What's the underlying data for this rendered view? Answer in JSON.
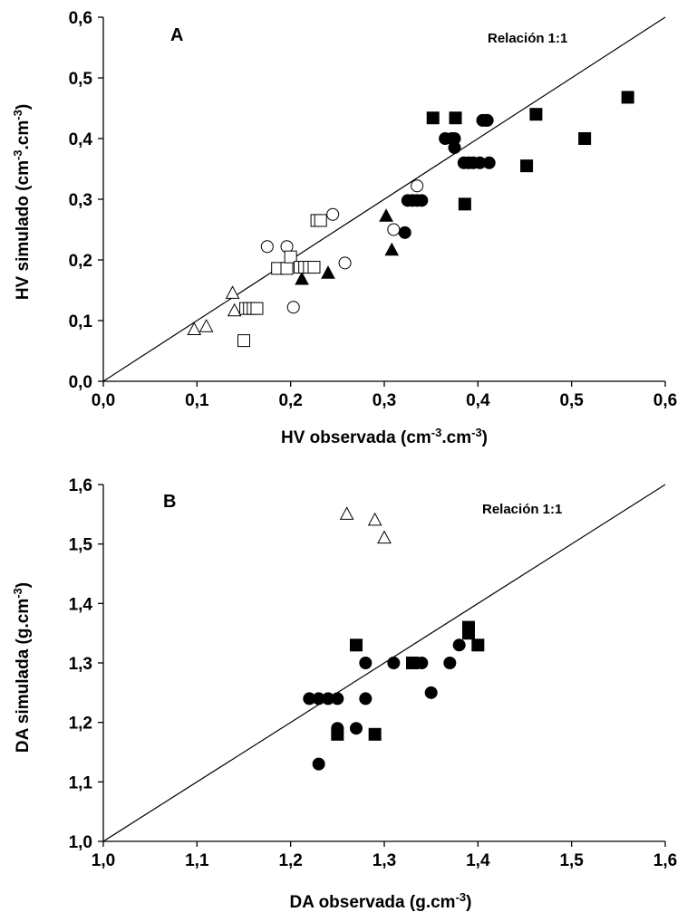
{
  "chart_data": [
    {
      "type": "scatter",
      "panel_label": "A",
      "annotation": "Relación 1:1",
      "xlabel": "HV observada (cm-3.cm-3)",
      "xlabel_parts": [
        "HV observada (cm",
        "-3",
        ".cm",
        "-3",
        ")"
      ],
      "ylabel": "HV simulado (cm-3.cm-3)",
      "ylabel_parts": [
        "HV simulado (cm",
        "-3",
        ".cm",
        "-3",
        ")"
      ],
      "xlim": [
        0.0,
        0.6
      ],
      "ylim": [
        0.0,
        0.6
      ],
      "xticks": [
        0.0,
        0.1,
        0.2,
        0.3,
        0.4,
        0.5,
        0.6
      ],
      "yticks": [
        0.0,
        0.1,
        0.2,
        0.3,
        0.4,
        0.5,
        0.6
      ],
      "xtick_labels": [
        "0,0",
        "0,1",
        "0,2",
        "0,3",
        "0,4",
        "0,5",
        "0,6"
      ],
      "ytick_labels": [
        "0,0",
        "0,1",
        "0,2",
        "0,3",
        "0,4",
        "0,5",
        "0,6"
      ],
      "grid": false,
      "reference_line": {
        "type": "1:1",
        "from": [
          0.0,
          0.0
        ],
        "to": [
          0.6,
          0.6
        ]
      },
      "series": [
        {
          "marker": "square-filled",
          "x": [
            0.352,
            0.376,
            0.386,
            0.452,
            0.462,
            0.514,
            0.56
          ],
          "y": [
            0.434,
            0.434,
            0.292,
            0.355,
            0.44,
            0.4,
            0.468
          ]
        },
        {
          "marker": "circle-filled",
          "x": [
            0.322,
            0.325,
            0.33,
            0.335,
            0.34,
            0.365,
            0.372,
            0.375,
            0.375,
            0.385,
            0.39,
            0.395,
            0.402,
            0.405,
            0.408,
            0.41,
            0.412
          ],
          "y": [
            0.245,
            0.298,
            0.298,
            0.298,
            0.298,
            0.4,
            0.4,
            0.4,
            0.385,
            0.36,
            0.36,
            0.36,
            0.36,
            0.43,
            0.43,
            0.43,
            0.36
          ]
        },
        {
          "marker": "triangle-filled",
          "x": [
            0.212,
            0.24,
            0.302,
            0.308
          ],
          "y": [
            0.168,
            0.178,
            0.272,
            0.216
          ]
        },
        {
          "marker": "triangle-open",
          "x": [
            0.097,
            0.11,
            0.138,
            0.14
          ],
          "y": [
            0.085,
            0.09,
            0.145,
            0.116
          ]
        },
        {
          "marker": "circle-open",
          "x": [
            0.175,
            0.196,
            0.203,
            0.245,
            0.258,
            0.31,
            0.335
          ],
          "y": [
            0.222,
            0.222,
            0.122,
            0.275,
            0.195,
            0.25,
            0.322
          ]
        },
        {
          "marker": "square-open",
          "x": [
            0.15,
            0.152,
            0.156,
            0.16,
            0.164,
            0.186,
            0.196,
            0.2,
            0.21,
            0.215,
            0.22,
            0.225,
            0.228,
            0.232
          ],
          "y": [
            0.067,
            0.12,
            0.12,
            0.12,
            0.12,
            0.186,
            0.186,
            0.205,
            0.188,
            0.188,
            0.188,
            0.188,
            0.265,
            0.265
          ]
        }
      ]
    },
    {
      "type": "scatter",
      "panel_label": "B",
      "annotation": "Relación 1:1",
      "xlabel": "DA observada (g.cm-3)",
      "xlabel_parts": [
        "DA observada (g.cm",
        "-3",
        ")",
        "",
        ""
      ],
      "ylabel": "DA simulada (g.cm-3)",
      "ylabel_parts": [
        "DA simulada (g.cm",
        "-3",
        ")",
        "",
        ""
      ],
      "xlim": [
        1.0,
        1.6
      ],
      "ylim": [
        1.0,
        1.6
      ],
      "xticks": [
        1.0,
        1.1,
        1.2,
        1.3,
        1.4,
        1.5,
        1.6
      ],
      "yticks": [
        1.0,
        1.1,
        1.2,
        1.3,
        1.4,
        1.5,
        1.6
      ],
      "xtick_labels": [
        "1,0",
        "1,1",
        "1,2",
        "1,3",
        "1,4",
        "1,5",
        "1,6"
      ],
      "ytick_labels": [
        "1,0",
        "1,1",
        "1,2",
        "1,3",
        "1,4",
        "1,5",
        "1,6"
      ],
      "grid": false,
      "reference_line": {
        "type": "1:1",
        "from": [
          1.0,
          1.0
        ],
        "to": [
          1.6,
          1.6
        ]
      },
      "series": [
        {
          "marker": "square-filled",
          "x": [
            1.25,
            1.27,
            1.29,
            1.33,
            1.39,
            1.39,
            1.4
          ],
          "y": [
            1.18,
            1.33,
            1.18,
            1.3,
            1.36,
            1.35,
            1.33
          ]
        },
        {
          "marker": "circle-filled",
          "x": [
            1.22,
            1.23,
            1.23,
            1.24,
            1.25,
            1.25,
            1.27,
            1.28,
            1.28,
            1.31,
            1.34,
            1.35,
            1.37,
            1.38
          ],
          "y": [
            1.24,
            1.24,
            1.13,
            1.24,
            1.24,
            1.19,
            1.19,
            1.3,
            1.24,
            1.3,
            1.3,
            1.25,
            1.3,
            1.33
          ]
        },
        {
          "marker": "triangle-open",
          "x": [
            1.26,
            1.29,
            1.3
          ],
          "y": [
            1.55,
            1.54,
            1.51
          ]
        }
      ]
    }
  ]
}
